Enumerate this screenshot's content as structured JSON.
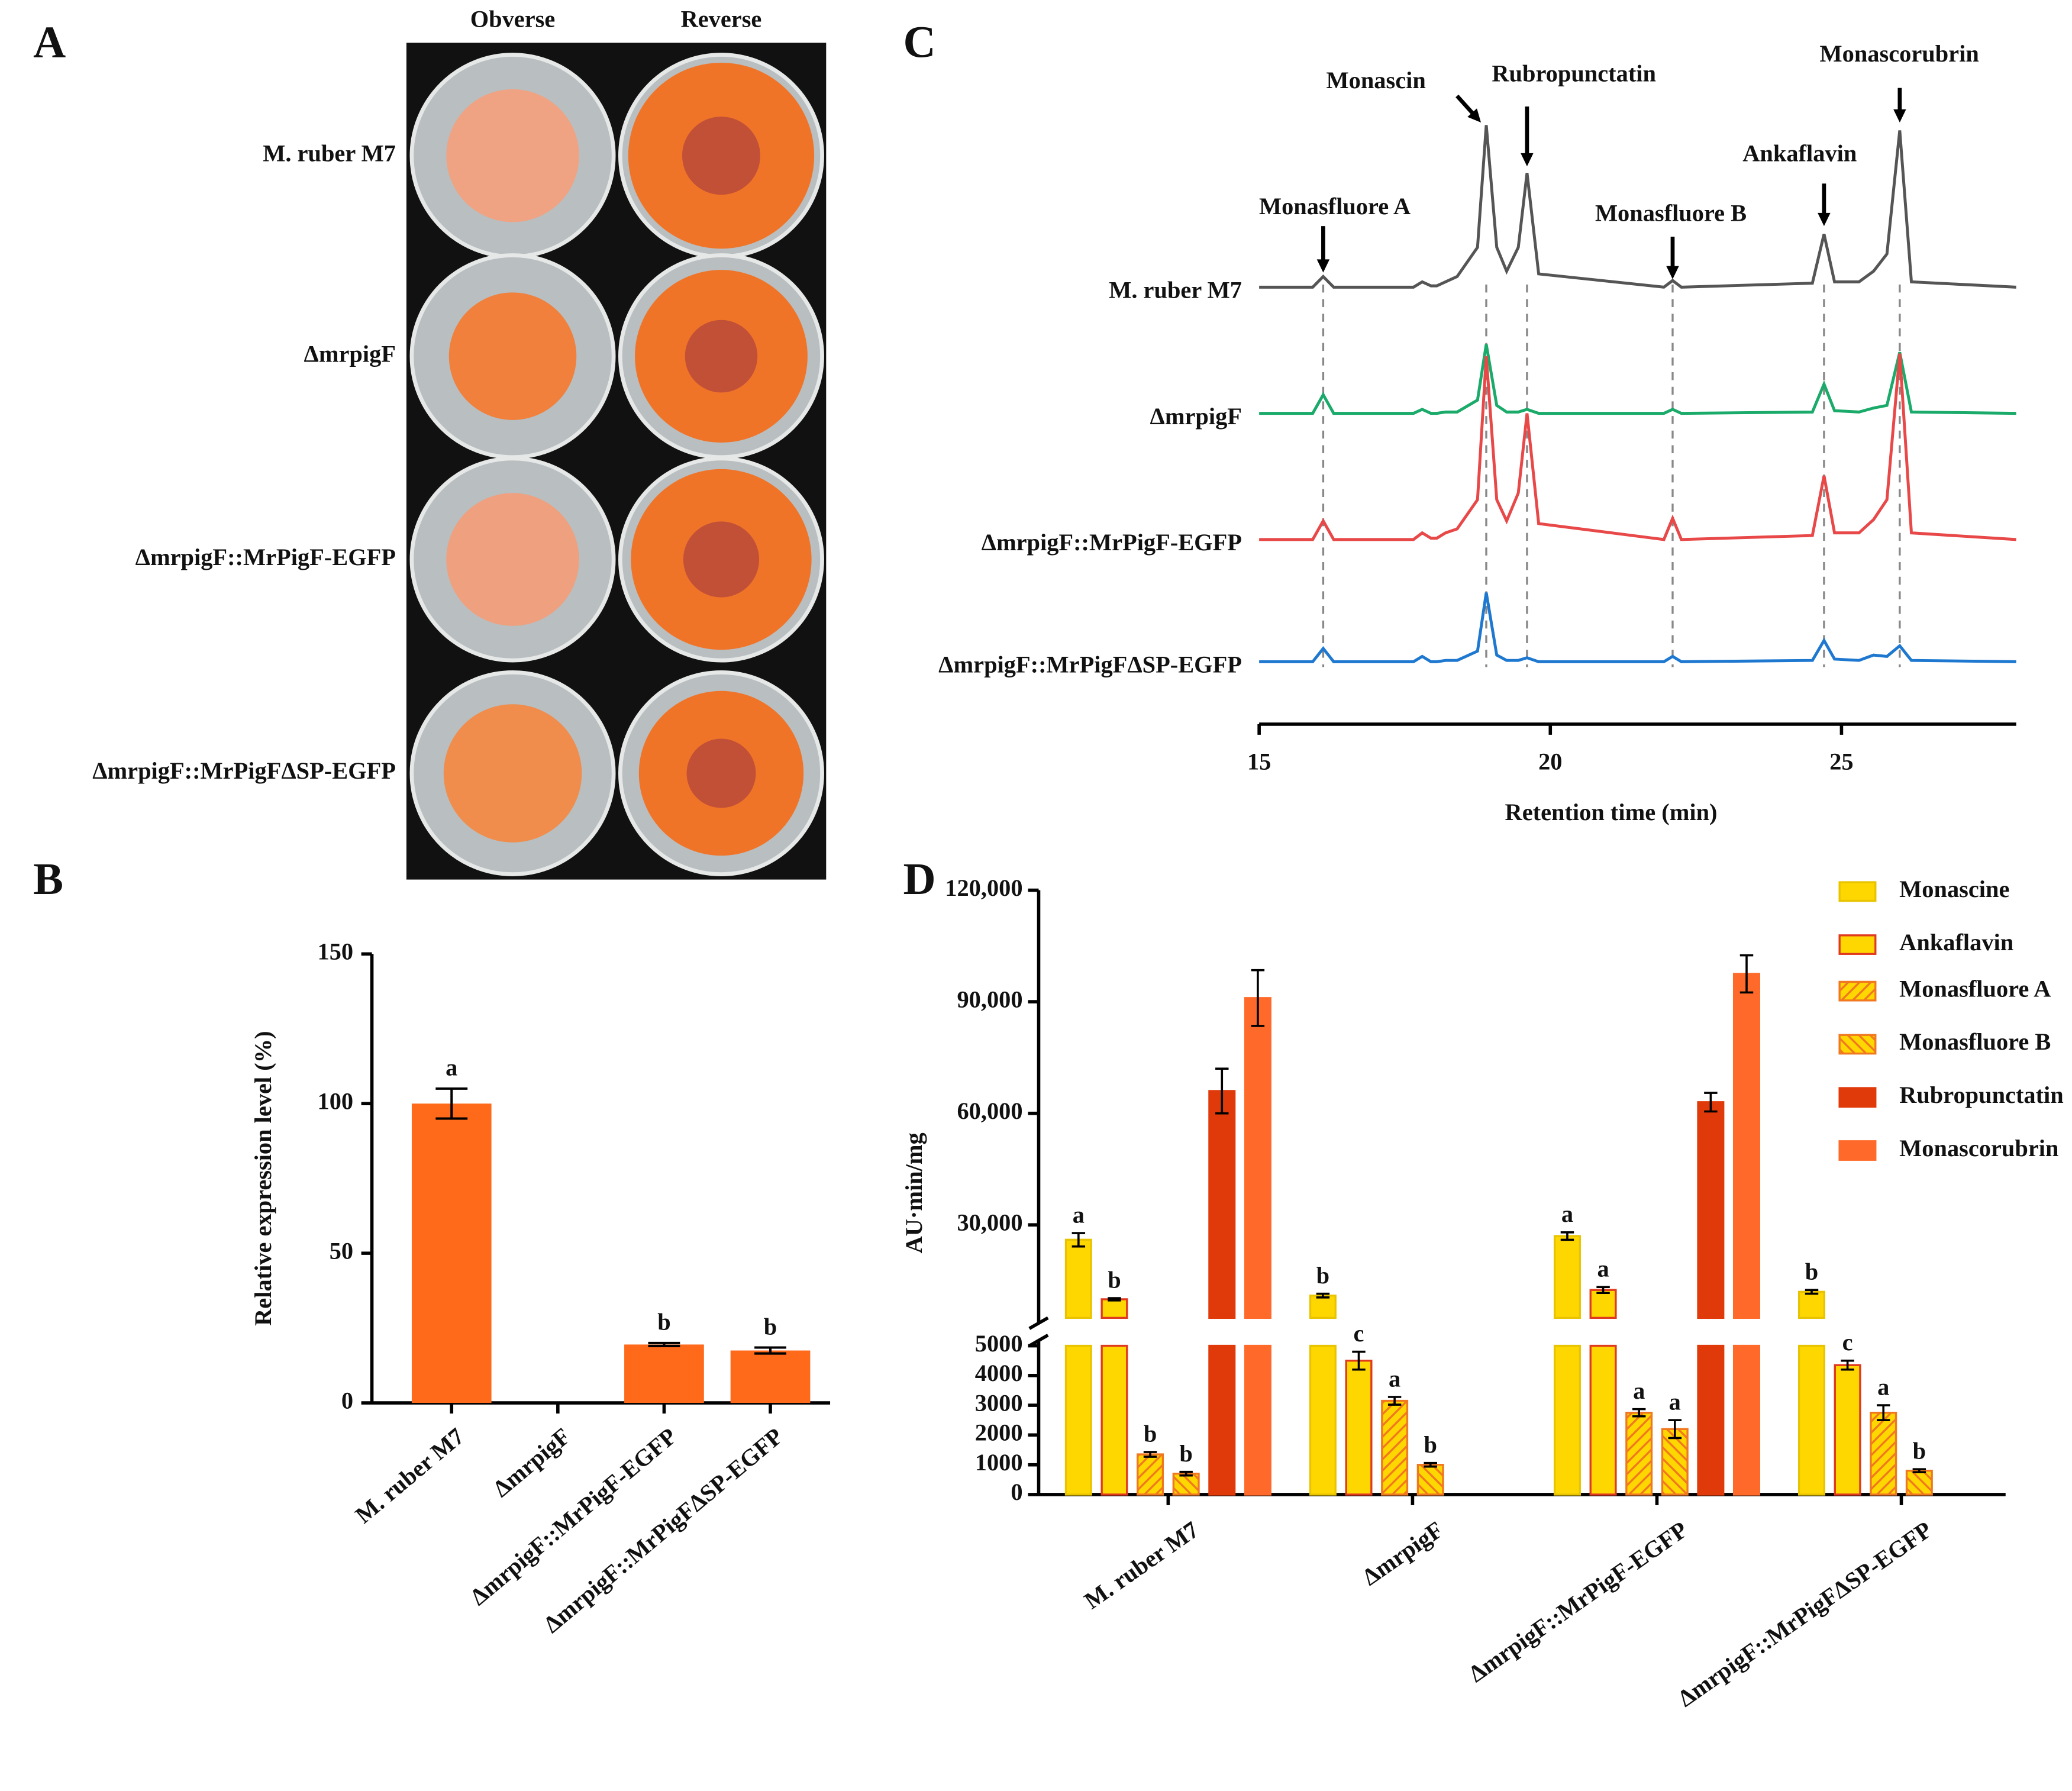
{
  "panels": [
    "A",
    "B",
    "C",
    "D"
  ],
  "photo_panel": {
    "columns": [
      "Obverse",
      "Reverse"
    ],
    "rows": [
      "M. ruber M7",
      "ΔmrpigF",
      "ΔmrpigF::MrPigF-EGFP",
      "ΔmrpigF::MrPigFΔSP-EGFP"
    ]
  },
  "chart_data": [
    {
      "type": "bar",
      "ylabel": "Relative expression level (%)",
      "categories": [
        "M. ruber M7",
        "ΔmrpigF",
        "ΔmrpigF::MrPigF-EGFP",
        "ΔmrpigF::MrPigFΔSP-EGFP"
      ],
      "values": [
        100,
        0,
        19.5,
        17.5
      ],
      "errors": [
        5,
        null,
        0.5,
        1
      ],
      "significance": [
        "a",
        null,
        "b",
        "b"
      ],
      "color": "#ff6a1a",
      "ylim": [
        0,
        150
      ],
      "yticks": [
        0,
        50,
        100,
        150
      ]
    },
    {
      "type": "line",
      "xlabel": "Retention time (min)",
      "xlim": [
        15,
        28
      ],
      "xticks": [
        15,
        20,
        25
      ],
      "ylim": [
        0,
        150
      ],
      "x": [
        15,
        15.92,
        16.1,
        16.28,
        17.65,
        17.8,
        17.95,
        18.05,
        18.2,
        18.4,
        18.75,
        18.9,
        19.08,
        19.25,
        19.45,
        19.6,
        19.8,
        21.95,
        22.1,
        22.25,
        24.5,
        24.7,
        24.88,
        25.3,
        25.55,
        25.78,
        26.0,
        26.2,
        28
      ],
      "series": [
        {
          "name": "M. ruber M7",
          "color": "#555555",
          "values": [
            0,
            0,
            8,
            0,
            0,
            4,
            1,
            1,
            4,
            8,
            30,
            122,
            30,
            12,
            30,
            86,
            10,
            0,
            5,
            0,
            3,
            40,
            4,
            4,
            12,
            25,
            118,
            4,
            0
          ]
        },
        {
          "name": "ΔmrpigF",
          "color": "#1aaa6a",
          "values": [
            0,
            0,
            14,
            0,
            0,
            3,
            0,
            0,
            1,
            1,
            10,
            52,
            6,
            1,
            1,
            3,
            0,
            0,
            3,
            0,
            1,
            22,
            2,
            1,
            4,
            6,
            46,
            1,
            0
          ]
        },
        {
          "name": "ΔmrpigF::MrPigF-EGFP",
          "color": "#e84848",
          "values": [
            0,
            0,
            14,
            0,
            0,
            5,
            1,
            1,
            5,
            8,
            30,
            138,
            30,
            14,
            35,
            95,
            12,
            0,
            16,
            0,
            3,
            48,
            5,
            5,
            15,
            30,
            140,
            5,
            0
          ]
        },
        {
          "name": "ΔmrpigF::MrPigFΔSP-EGFP",
          "color": "#1e78d0",
          "values": [
            0,
            0,
            10,
            0,
            0,
            4,
            0,
            0,
            1,
            1,
            8,
            52,
            5,
            1,
            1,
            3,
            0,
            0,
            4,
            0,
            1,
            16,
            2,
            1,
            5,
            4,
            12,
            1,
            0
          ]
        }
      ],
      "annotations": [
        {
          "text": "Monasfluore A",
          "x": 16.1,
          "color": "#f07830"
        },
        {
          "text": "Monascin",
          "x": 18.9,
          "color": "#f07830"
        },
        {
          "text": "Rubropunctatin",
          "x": 19.6,
          "color": "#e03a1e"
        },
        {
          "text": "Monasfluore B",
          "x": 22.1,
          "color": "#f07830"
        },
        {
          "text": "Ankaflavin",
          "x": 24.7,
          "color": "#f07830"
        },
        {
          "text": "Monascorubrin",
          "x": 26.0,
          "color": "#e03a1e"
        }
      ]
    },
    {
      "type": "grouped-bar",
      "ylabel": "AU·min/mg",
      "categories": [
        "M. ruber M7",
        "ΔmrpigF",
        "ΔmrpigF::MrPigF-EGFP",
        "ΔmrpigF::MrPigFΔSP-EGFP"
      ],
      "segments": [
        {
          "ylim": [
            0,
            5000
          ],
          "yticks": [
            0,
            1000,
            2000,
            3000,
            4000,
            5000
          ]
        },
        {
          "ylim": [
            5000,
            120000
          ],
          "yticks": [
            {
              "value": 30000,
              "label": "30,000"
            },
            {
              "value": 60000,
              "label": "60,000"
            },
            {
              "value": 90000,
              "label": "90,000"
            },
            {
              "value": 120000,
              "label": "120,000"
            }
          ]
        }
      ],
      "series": [
        {
          "name": "Monascine",
          "color": "#ffd700",
          "border": "#e8c400",
          "values": [
            26000,
            11000,
            27000,
            12000
          ],
          "errors": [
            1800,
            500,
            1000,
            500
          ],
          "significance": [
            "a",
            "b",
            "a",
            "b"
          ]
        },
        {
          "name": "Ankaflavin",
          "color": "#ffd700",
          "border": "#e03a1e",
          "values": [
            10000,
            4500,
            12500,
            4350
          ],
          "errors": [
            300,
            300,
            800,
            150
          ],
          "significance": [
            "b",
            "c",
            "a",
            "c"
          ]
        },
        {
          "name": "Monasfluore A",
          "color": "#ffd700",
          "border": "#f07820",
          "pattern": "forward",
          "values": [
            1350,
            3150,
            2750,
            2750
          ],
          "errors": [
            80,
            130,
            120,
            250
          ],
          "significance": [
            "b",
            "a",
            "a",
            "a"
          ]
        },
        {
          "name": "Monasfluore B",
          "color": "#ffd700",
          "border": "#f07820",
          "pattern": "backward",
          "values": [
            700,
            1000,
            2200,
            800
          ],
          "errors": [
            60,
            60,
            300,
            50
          ],
          "significance": [
            "b",
            "b",
            "a",
            "b"
          ]
        },
        {
          "name": "Rubropunctatin",
          "color": "#e03a0a",
          "border": "#e03a0a",
          "values": [
            66000,
            null,
            63000,
            null
          ],
          "errors": [
            6000,
            null,
            2500,
            null
          ]
        },
        {
          "name": "Monascorubrin",
          "color": "#ff6a2a",
          "border": "#ff6a2a",
          "values": [
            91000,
            null,
            97500,
            null
          ],
          "errors": [
            7500,
            null,
            5000,
            null
          ]
        }
      ]
    }
  ]
}
